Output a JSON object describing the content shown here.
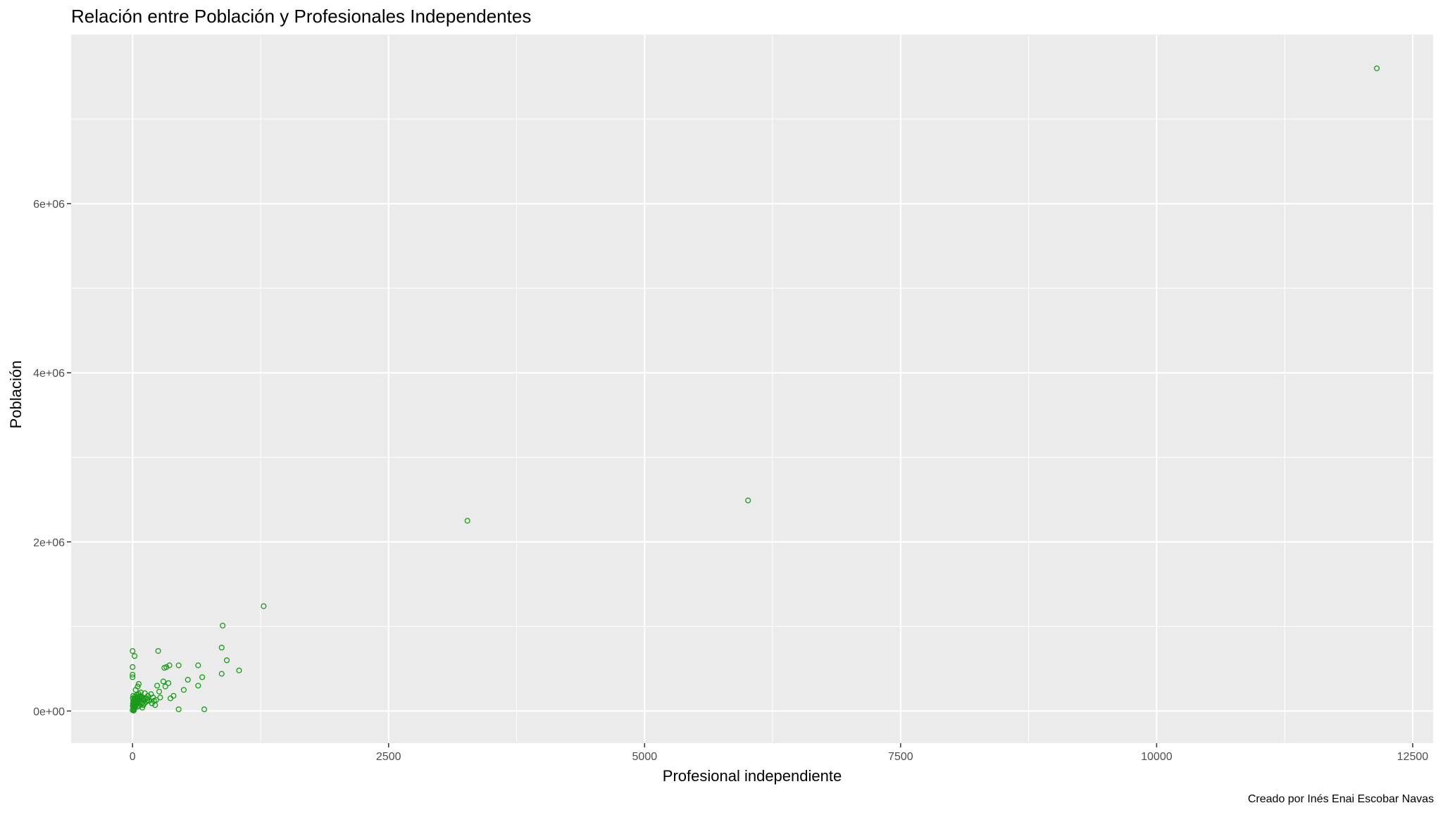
{
  "chart_data": {
    "type": "scatter",
    "title": "Relación entre Población y Profesionales Independentes",
    "xlabel": "Profesional independiente",
    "ylabel": "Población",
    "caption": "Creado por Inés Enai Escobar Navas",
    "xlim": [
      -600,
      12700
    ],
    "ylim": [
      -380000,
      8000000
    ],
    "x_ticks": [
      0,
      2500,
      5000,
      7500,
      10000,
      12500
    ],
    "x_tick_labels": [
      "0",
      "2500",
      "5000",
      "7500",
      "10000",
      "12500"
    ],
    "y_ticks": [
      0,
      2000000,
      4000000,
      6000000
    ],
    "y_tick_labels": [
      "0e+00",
      "2e+06",
      "4e+06",
      "6e+06"
    ],
    "grid": true,
    "point_color": "#1a9a1a",
    "panel_background": "#ebebeb",
    "series": [
      {
        "points": [
          [
            12150,
            7600000
          ],
          [
            6010,
            2490000
          ],
          [
            3270,
            2250000
          ],
          [
            1280,
            1240000
          ],
          [
            880,
            1010000
          ],
          [
            870,
            750000
          ],
          [
            920,
            600000
          ],
          [
            1040,
            480000
          ],
          [
            870,
            440000
          ],
          [
            640,
            540000
          ],
          [
            680,
            400000
          ],
          [
            540,
            370000
          ],
          [
            450,
            540000
          ],
          [
            250,
            710000
          ],
          [
            330,
            520000
          ],
          [
            360,
            540000
          ],
          [
            310,
            510000
          ],
          [
            300,
            350000
          ],
          [
            350,
            330000
          ],
          [
            320,
            290000
          ],
          [
            640,
            300000
          ],
          [
            500,
            250000
          ],
          [
            400,
            180000
          ],
          [
            370,
            150000
          ],
          [
            450,
            20000
          ],
          [
            700,
            20000
          ],
          [
            0,
            710000
          ],
          [
            20,
            650000
          ],
          [
            0,
            520000
          ],
          [
            0,
            430000
          ],
          [
            0,
            400000
          ],
          [
            60,
            320000
          ],
          [
            50,
            290000
          ],
          [
            30,
            250000
          ],
          [
            80,
            220000
          ],
          [
            120,
            210000
          ],
          [
            150,
            180000
          ],
          [
            180,
            200000
          ],
          [
            200,
            160000
          ],
          [
            230,
            130000
          ],
          [
            260,
            230000
          ],
          [
            240,
            300000
          ],
          [
            270,
            160000
          ],
          [
            210,
            120000
          ],
          [
            190,
            90000
          ],
          [
            220,
            70000
          ],
          [
            160,
            120000
          ],
          [
            140,
            150000
          ],
          [
            110,
            130000
          ],
          [
            100,
            100000
          ],
          [
            90,
            160000
          ],
          [
            70,
            180000
          ],
          [
            60,
            140000
          ],
          [
            50,
            100000
          ],
          [
            40,
            80000
          ],
          [
            30,
            60000
          ],
          [
            20,
            40000
          ],
          [
            10,
            20000
          ],
          [
            0,
            10000
          ],
          [
            15,
            30000
          ],
          [
            25,
            70000
          ],
          [
            35,
            120000
          ],
          [
            45,
            50000
          ],
          [
            55,
            90000
          ],
          [
            65,
            60000
          ],
          [
            75,
            110000
          ],
          [
            85,
            80000
          ],
          [
            95,
            40000
          ],
          [
            105,
            70000
          ],
          [
            115,
            90000
          ],
          [
            125,
            150000
          ],
          [
            135,
            110000
          ],
          [
            145,
            130000
          ],
          [
            5,
            50000
          ],
          [
            8,
            80000
          ],
          [
            12,
            110000
          ],
          [
            18,
            140000
          ],
          [
            22,
            170000
          ],
          [
            28,
            100000
          ],
          [
            32,
            130000
          ],
          [
            38,
            160000
          ],
          [
            42,
            190000
          ],
          [
            48,
            120000
          ],
          [
            52,
            140000
          ],
          [
            58,
            170000
          ],
          [
            62,
            200000
          ],
          [
            68,
            130000
          ],
          [
            72,
            150000
          ],
          [
            78,
            170000
          ],
          [
            3,
            150000
          ],
          [
            6,
            180000
          ],
          [
            2,
            60000
          ],
          [
            4,
            90000
          ],
          [
            7,
            120000
          ],
          [
            9,
            30000
          ],
          [
            11,
            5000
          ],
          [
            14,
            15000
          ]
        ]
      }
    ]
  }
}
